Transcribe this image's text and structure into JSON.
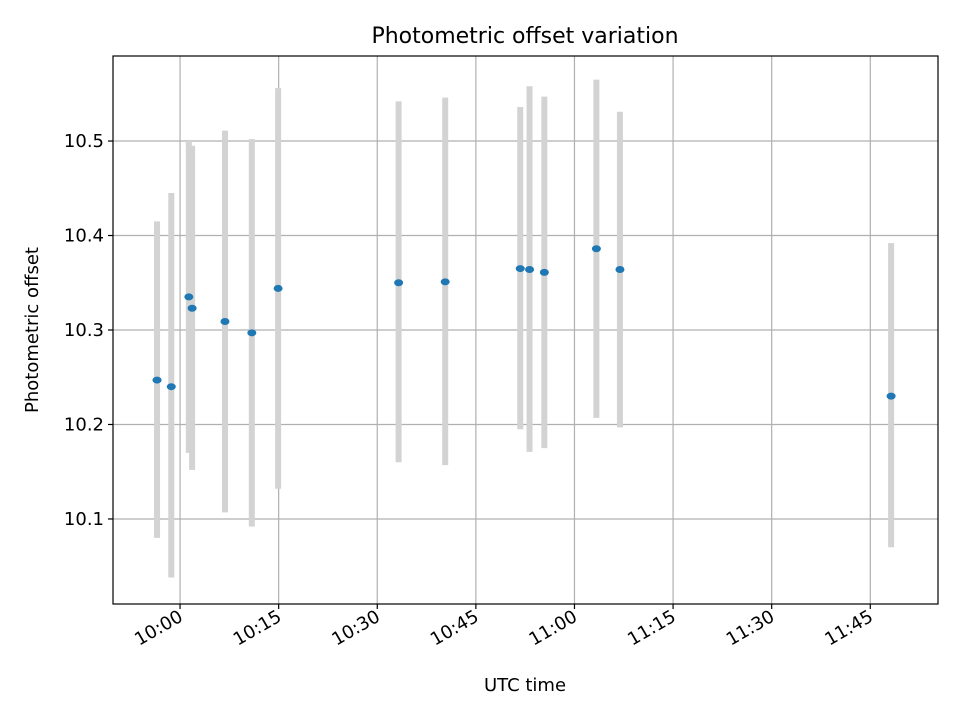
{
  "chart_data": {
    "type": "scatter",
    "title": "Photometric offset variation",
    "xlabel": "UTC time",
    "ylabel": "Photometric offset",
    "x_ticks": [
      "10:00",
      "10:15",
      "10:30",
      "10:45",
      "11:00",
      "11:15",
      "11:30",
      "11:45"
    ],
    "y_ticks": [
      "10.1",
      "10.2",
      "10.3",
      "10.4",
      "10.5"
    ],
    "grid": true,
    "colors": {
      "point": "#1f77b4",
      "errorbar": "#d3d3d3",
      "grid": "#b0b0b0"
    },
    "points": [
      {
        "time": "09:56:30",
        "y": 10.247,
        "ylow": 10.08,
        "yhigh": 10.415
      },
      {
        "time": "09:58:40",
        "y": 10.24,
        "ylow": 10.038,
        "yhigh": 10.445
      },
      {
        "time": "10:01:20",
        "y": 10.335,
        "ylow": 10.17,
        "yhigh": 10.5
      },
      {
        "time": "10:01:50",
        "y": 10.323,
        "ylow": 10.152,
        "yhigh": 10.495
      },
      {
        "time": "10:06:50",
        "y": 10.309,
        "ylow": 10.107,
        "yhigh": 10.511
      },
      {
        "time": "10:10:55",
        "y": 10.297,
        "ylow": 10.092,
        "yhigh": 10.502
      },
      {
        "time": "10:14:55",
        "y": 10.344,
        "ylow": 10.132,
        "yhigh": 10.556
      },
      {
        "time": "10:33:15",
        "y": 10.35,
        "ylow": 10.16,
        "yhigh": 10.542
      },
      {
        "time": "10:40:20",
        "y": 10.351,
        "ylow": 10.157,
        "yhigh": 10.546
      },
      {
        "time": "10:51:45",
        "y": 10.365,
        "ylow": 10.195,
        "yhigh": 10.536
      },
      {
        "time": "10:53:10",
        "y": 10.364,
        "ylow": 10.171,
        "yhigh": 10.558
      },
      {
        "time": "10:55:25",
        "y": 10.361,
        "ylow": 10.175,
        "yhigh": 10.547
      },
      {
        "time": "11:03:20",
        "y": 10.386,
        "ylow": 10.207,
        "yhigh": 10.565
      },
      {
        "time": "11:06:55",
        "y": 10.364,
        "ylow": 10.197,
        "yhigh": 10.531
      },
      {
        "time": "11:48:10",
        "y": 10.23,
        "ylow": 10.07,
        "yhigh": 10.392
      }
    ]
  }
}
